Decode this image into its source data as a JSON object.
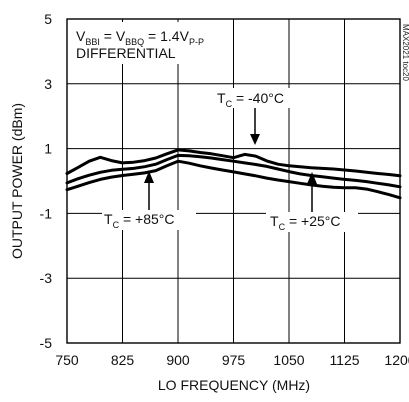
{
  "chart_data": {
    "type": "line",
    "xlabel": "LO FREQUENCY (MHz)",
    "ylabel": "OUTPUT POWER (dBm)",
    "xlim": [
      750,
      1200
    ],
    "ylim": [
      -5,
      5
    ],
    "x_ticks": [
      "750",
      "825",
      "900",
      "975",
      "1050",
      "1125",
      "1200"
    ],
    "y_ticks": [
      "5",
      "3",
      "1",
      "-1",
      "-3",
      "-5"
    ],
    "grid": true,
    "watermark": "MAX2021 toc20",
    "condition": {
      "v_bbi": "V",
      "v_bbi_sub": "BBI",
      "eq1": " = V",
      "v_bbq_sub": "BBQ",
      "eq2": " = 1.4V",
      "vpp_sub": "P-P",
      "line2": "DIFFERENTIAL"
    },
    "series": [
      {
        "name": "TC = -40°C",
        "label": {
          "t": "T",
          "sub": "C",
          "rest": " = -40°C"
        },
        "x": [
          750,
          765,
          780,
          795,
          810,
          825,
          840,
          855,
          870,
          885,
          900,
          915,
          930,
          945,
          960,
          975,
          990,
          1005,
          1020,
          1035,
          1050,
          1065,
          1080,
          1095,
          1110,
          1125,
          1140,
          1155,
          1170,
          1185,
          1200
        ],
        "values": [
          0.23,
          0.42,
          0.61,
          0.73,
          0.63,
          0.56,
          0.58,
          0.63,
          0.71,
          0.84,
          0.96,
          0.93,
          0.88,
          0.84,
          0.78,
          0.72,
          0.82,
          0.77,
          0.62,
          0.52,
          0.47,
          0.44,
          0.41,
          0.39,
          0.37,
          0.34,
          0.31,
          0.27,
          0.23,
          0.2,
          0.16
        ]
      },
      {
        "name": "TC = +85°C",
        "label": {
          "t": "T",
          "sub": "C",
          "rest": " = +85°C"
        },
        "x": [
          750,
          765,
          780,
          795,
          810,
          825,
          840,
          855,
          870,
          885,
          900,
          915,
          930,
          945,
          960,
          975,
          990,
          1005,
          1020,
          1035,
          1050,
          1065,
          1080,
          1095,
          1110,
          1125,
          1140,
          1155,
          1170,
          1185,
          1200
        ],
        "values": [
          -0.27,
          -0.16,
          -0.05,
          0.05,
          0.12,
          0.17,
          0.21,
          0.25,
          0.32,
          0.47,
          0.61,
          0.55,
          0.47,
          0.4,
          0.34,
          0.28,
          0.22,
          0.16,
          0.09,
          0.03,
          -0.02,
          -0.07,
          -0.12,
          -0.16,
          -0.19,
          -0.21,
          -0.21,
          -0.25,
          -0.33,
          -0.42,
          -0.52
        ]
      },
      {
        "name": "TC = +25°C",
        "label": {
          "t": "T",
          "sub": "C",
          "rest": " = +25°C"
        },
        "x": [
          750,
          765,
          780,
          795,
          810,
          825,
          840,
          855,
          870,
          885,
          900,
          915,
          930,
          945,
          960,
          975,
          990,
          1005,
          1020,
          1035,
          1050,
          1065,
          1080,
          1095,
          1110,
          1125,
          1140,
          1155,
          1170,
          1185,
          1200
        ],
        "values": [
          -0.06,
          0.07,
          0.18,
          0.27,
          0.33,
          0.36,
          0.39,
          0.44,
          0.52,
          0.66,
          0.79,
          0.78,
          0.75,
          0.71,
          0.66,
          0.61,
          0.56,
          0.51,
          0.45,
          0.37,
          0.29,
          0.22,
          0.17,
          0.13,
          0.09,
          0.05,
          0.02,
          -0.02,
          -0.07,
          -0.12,
          -0.18
        ]
      }
    ]
  }
}
